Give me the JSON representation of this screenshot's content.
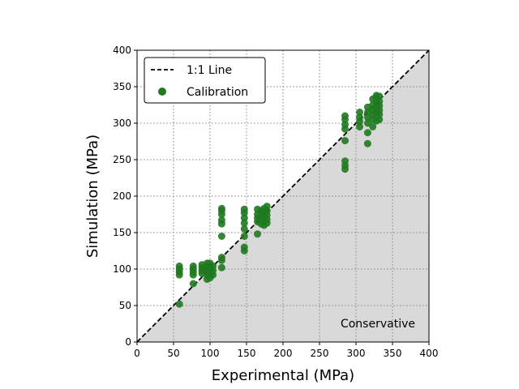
{
  "chart_data": {
    "type": "scatter",
    "xlabel": "Experimental (MPa)",
    "ylabel": "Simulation (MPa)",
    "xlim": [
      0,
      400
    ],
    "ylim": [
      0,
      400
    ],
    "xticks": [
      0,
      50,
      100,
      150,
      200,
      250,
      300,
      350,
      400
    ],
    "yticks": [
      0,
      50,
      100,
      150,
      200,
      250,
      300,
      350,
      400
    ],
    "grid": true,
    "legend_position": "upper-left",
    "annotation": "Conservative",
    "colors": {
      "points": "#1f7a1f",
      "conservative_region": "#d9d9d9",
      "reference_line": "#000000",
      "grid": "#808080"
    },
    "series": [
      {
        "name": "1:1 Line",
        "type": "line",
        "style": "dashed",
        "x": [
          0,
          400
        ],
        "y": [
          0,
          400
        ]
      },
      {
        "name": "Calibration",
        "type": "scatter",
        "points": [
          [
            58,
            52
          ],
          [
            58,
            92
          ],
          [
            58,
            96
          ],
          [
            58,
            100
          ],
          [
            58,
            104
          ],
          [
            77,
            80
          ],
          [
            77,
            92
          ],
          [
            77,
            96
          ],
          [
            77,
            100
          ],
          [
            77,
            104
          ],
          [
            89,
            94
          ],
          [
            89,
            98
          ],
          [
            89,
            102
          ],
          [
            89,
            106
          ],
          [
            96,
            86
          ],
          [
            96,
            92
          ],
          [
            96,
            96
          ],
          [
            96,
            100
          ],
          [
            96,
            104
          ],
          [
            96,
            108
          ],
          [
            100,
            88
          ],
          [
            100,
            92
          ],
          [
            100,
            96
          ],
          [
            100,
            100
          ],
          [
            100,
            104
          ],
          [
            100,
            108
          ],
          [
            104,
            92
          ],
          [
            104,
            98
          ],
          [
            104,
            104
          ],
          [
            116,
            102
          ],
          [
            116,
            112
          ],
          [
            116,
            116
          ],
          [
            116,
            145
          ],
          [
            116,
            162
          ],
          [
            116,
            167
          ],
          [
            116,
            175
          ],
          [
            116,
            180
          ],
          [
            116,
            183
          ],
          [
            147,
            125
          ],
          [
            147,
            130
          ],
          [
            147,
            145
          ],
          [
            147,
            155
          ],
          [
            147,
            163
          ],
          [
            147,
            170
          ],
          [
            147,
            177
          ],
          [
            147,
            182
          ],
          [
            165,
            148
          ],
          [
            165,
            165
          ],
          [
            165,
            170
          ],
          [
            165,
            175
          ],
          [
            165,
            182
          ],
          [
            170,
            162
          ],
          [
            170,
            168
          ],
          [
            170,
            174
          ],
          [
            170,
            180
          ],
          [
            174,
            160
          ],
          [
            174,
            166
          ],
          [
            174,
            172
          ],
          [
            174,
            178
          ],
          [
            174,
            183
          ],
          [
            178,
            163
          ],
          [
            178,
            168
          ],
          [
            178,
            174
          ],
          [
            178,
            180
          ],
          [
            178,
            186
          ],
          [
            285,
            237
          ],
          [
            285,
            242
          ],
          [
            285,
            248
          ],
          [
            285,
            276
          ],
          [
            285,
            292
          ],
          [
            285,
            298
          ],
          [
            285,
            305
          ],
          [
            285,
            310
          ],
          [
            305,
            295
          ],
          [
            305,
            302
          ],
          [
            305,
            308
          ],
          [
            305,
            315
          ],
          [
            316,
            272
          ],
          [
            316,
            287
          ],
          [
            316,
            300
          ],
          [
            316,
            308
          ],
          [
            316,
            315
          ],
          [
            316,
            322
          ],
          [
            323,
            295
          ],
          [
            323,
            305
          ],
          [
            323,
            312
          ],
          [
            323,
            318
          ],
          [
            323,
            325
          ],
          [
            323,
            333
          ],
          [
            328,
            303
          ],
          [
            328,
            310
          ],
          [
            328,
            316
          ],
          [
            328,
            322
          ],
          [
            328,
            328
          ],
          [
            328,
            335
          ],
          [
            328,
            338
          ],
          [
            332,
            305
          ],
          [
            332,
            312
          ],
          [
            332,
            318
          ],
          [
            332,
            324
          ],
          [
            332,
            330
          ],
          [
            332,
            337
          ]
        ]
      }
    ]
  }
}
